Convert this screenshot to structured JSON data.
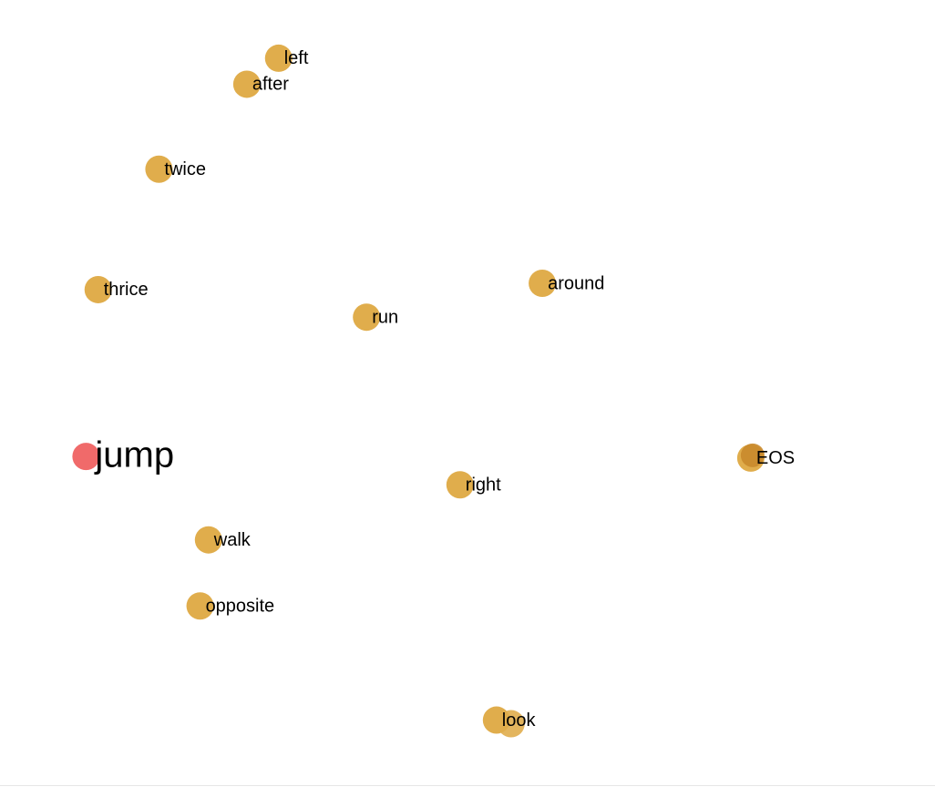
{
  "chart_data": {
    "type": "scatter",
    "title": "",
    "xlabel": "",
    "ylabel": "",
    "grid": false,
    "legend": "none",
    "colors": {
      "default": "#e0ad4c",
      "highlight": "#f06a6a",
      "dark": "#c98a2c"
    },
    "xlim": [
      0,
      1
    ],
    "ylim": [
      0,
      1
    ],
    "points": [
      {
        "label": "left",
        "x": 0.298,
        "y": 0.926,
        "style": "default"
      },
      {
        "label": "after",
        "x": 0.264,
        "y": 0.893,
        "style": "default"
      },
      {
        "label": "twice",
        "x": 0.17,
        "y": 0.785,
        "style": "default"
      },
      {
        "label": "thrice",
        "x": 0.105,
        "y": 0.632,
        "style": "default"
      },
      {
        "label": "around",
        "x": 0.58,
        "y": 0.64,
        "style": "default"
      },
      {
        "label": "run",
        "x": 0.392,
        "y": 0.597,
        "style": "default"
      },
      {
        "label": "jump",
        "x": 0.092,
        "y": 0.42,
        "style": "highlight"
      },
      {
        "label": "EOS",
        "x": 0.803,
        "y": 0.418,
        "style": "dark"
      },
      {
        "label": "right",
        "x": 0.492,
        "y": 0.384,
        "style": "default"
      },
      {
        "label": "walk",
        "x": 0.223,
        "y": 0.314,
        "style": "default"
      },
      {
        "label": "opposite",
        "x": 0.214,
        "y": 0.23,
        "style": "default"
      },
      {
        "label": "look",
        "x": 0.531,
        "y": 0.085,
        "style": "default"
      }
    ]
  }
}
